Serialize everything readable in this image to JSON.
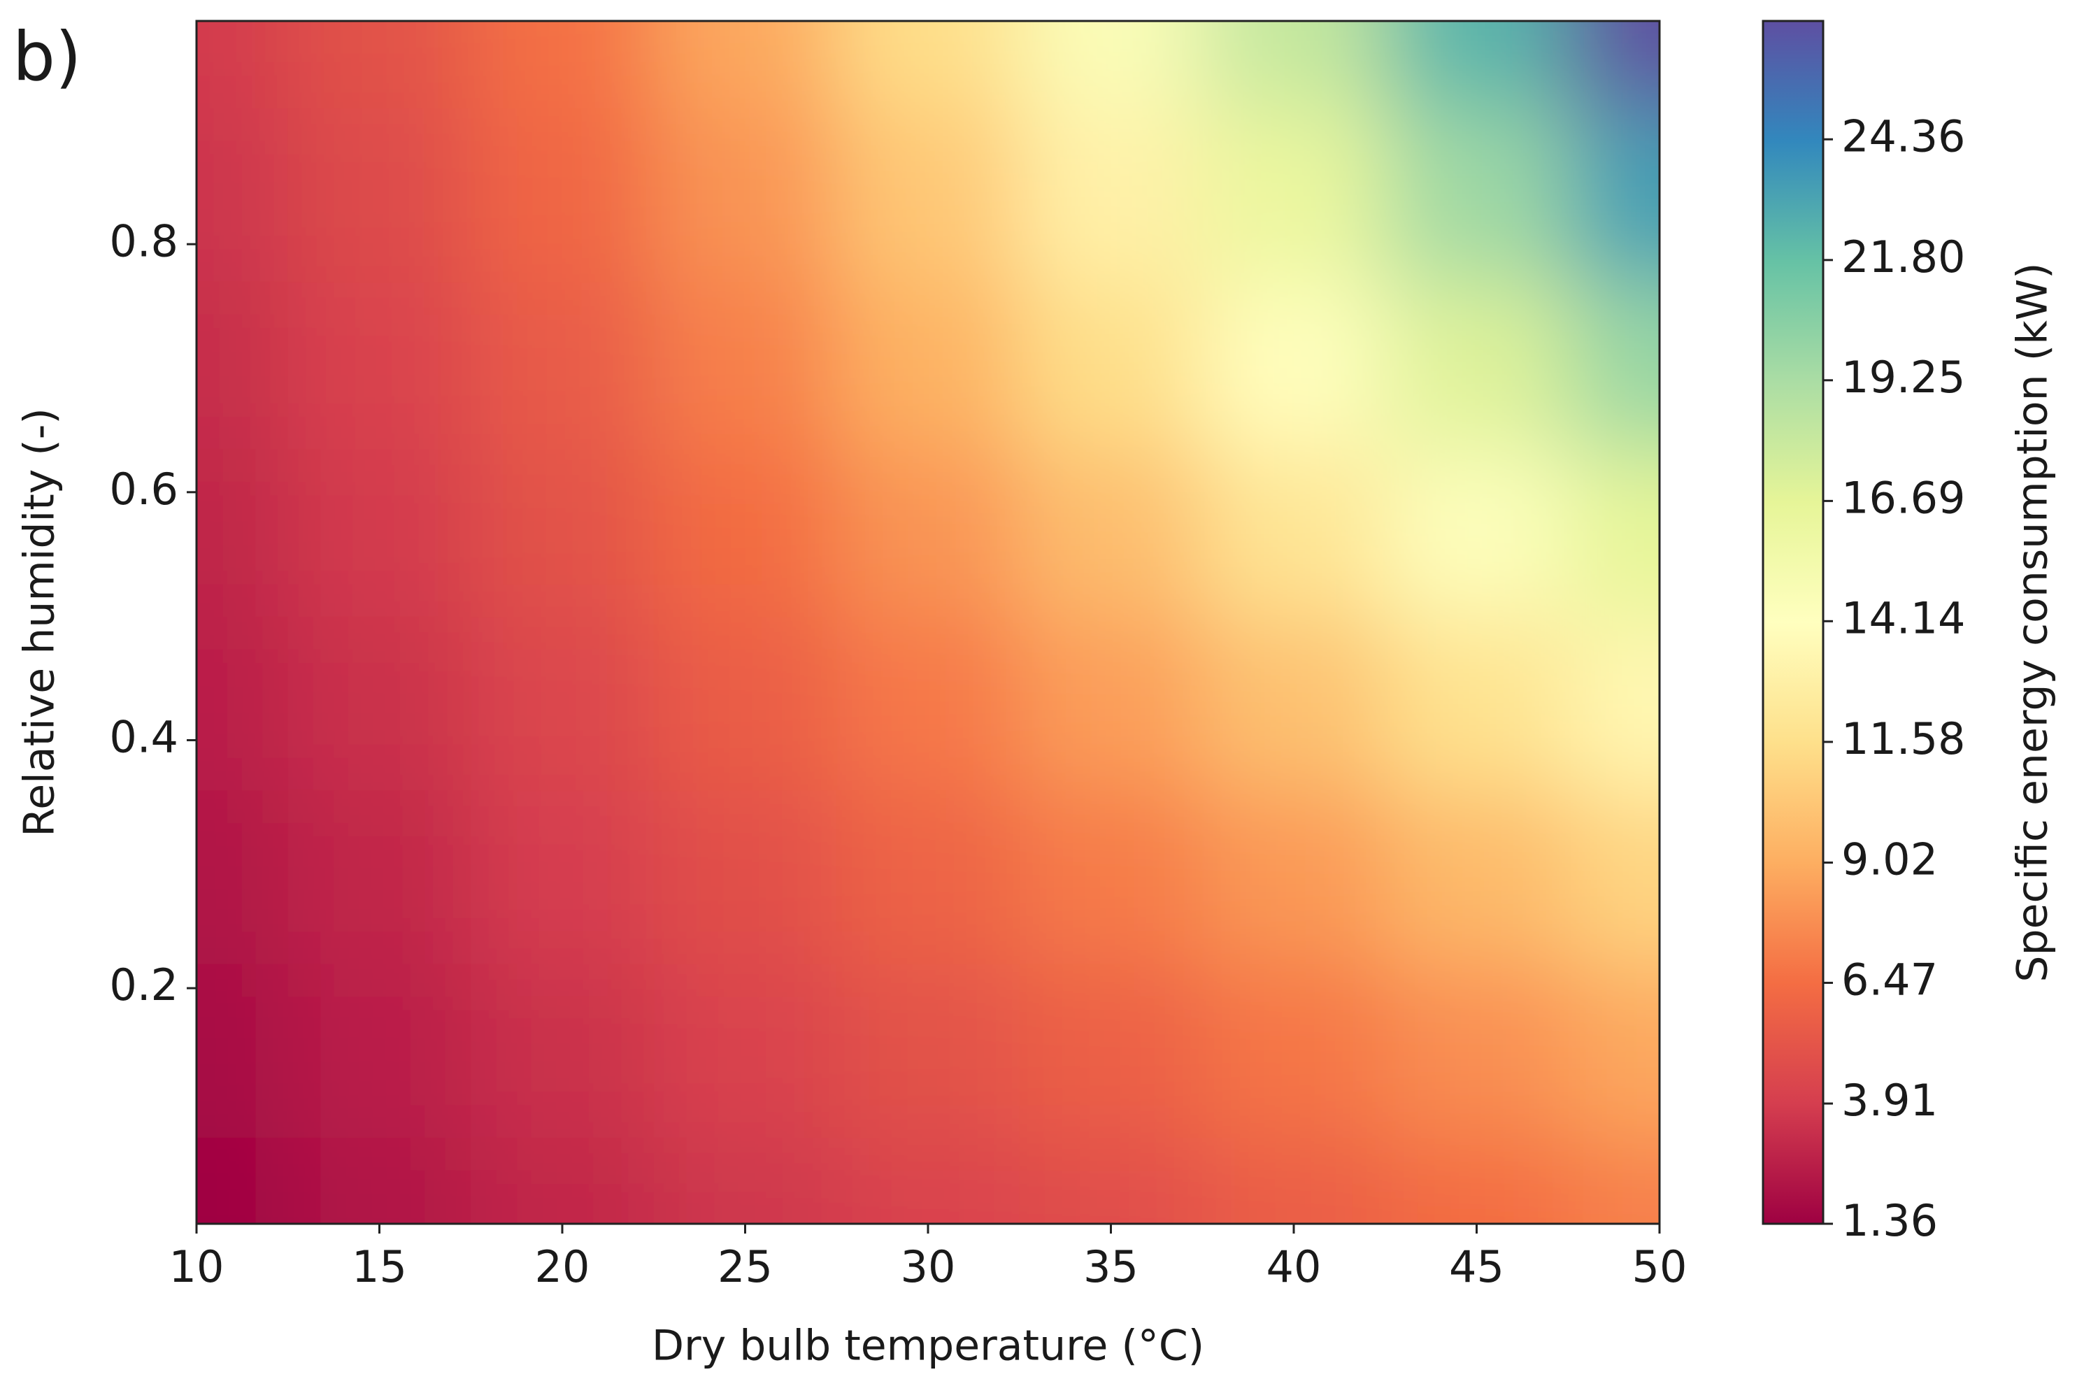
{
  "chart_data": {
    "type": "heatmap",
    "panel_label": "b)",
    "x_label": "Dry bulb temperature (°C)",
    "y_label": "Relative humidity (-)",
    "colorbar_label": "Specific energy consumption (kW)",
    "x": [
      10,
      15,
      20,
      25,
      30,
      35,
      40,
      45,
      50
    ],
    "y": [
      0.01,
      0.15,
      0.29,
      0.43,
      0.57,
      0.7,
      0.84,
      0.98
    ],
    "z": [
      [
        1.4,
        2.2,
        3.0,
        3.6,
        4.2,
        4.8,
        5.6,
        6.4,
        7.2
      ],
      [
        1.8,
        2.6,
        3.4,
        4.2,
        5.0,
        5.8,
        6.8,
        7.8,
        8.8
      ],
      [
        2.2,
        3.0,
        3.9,
        4.9,
        5.9,
        7.0,
        8.2,
        9.6,
        11.0
      ],
      [
        2.6,
        3.4,
        4.4,
        5.6,
        6.9,
        8.4,
        10.0,
        11.8,
        13.5
      ],
      [
        2.9,
        3.8,
        5.0,
        6.4,
        8.0,
        9.8,
        12.0,
        14.3,
        16.7
      ],
      [
        3.2,
        4.2,
        5.5,
        7.2,
        9.2,
        11.5,
        14.0,
        17.0,
        20.0
      ],
      [
        3.5,
        4.6,
        6.1,
        8.0,
        10.3,
        13.0,
        16.2,
        19.7,
        23.4
      ],
      [
        3.8,
        5.0,
        6.6,
        8.8,
        11.5,
        14.6,
        18.2,
        22.4,
        26.9
      ]
    ],
    "xlim": [
      10,
      50
    ],
    "ylim": [
      0.01,
      0.98
    ],
    "xticks": [
      10,
      15,
      20,
      25,
      30,
      35,
      40,
      45,
      50
    ],
    "yticks": [
      0.2,
      0.4,
      0.6,
      0.8
    ],
    "clim": [
      1.36,
      26.87
    ],
    "cticks": [
      1.36,
      3.91,
      6.47,
      9.02,
      11.58,
      14.14,
      16.69,
      19.25,
      {
        "value": 21.8,
        "label": "21.80"
      },
      24.36
    ],
    "colormap": [
      "#9e0142",
      "#d53e4f",
      "#f46d43",
      "#fdae61",
      "#fee08b",
      "#ffffbf",
      "#e6f598",
      "#abdda4",
      "#66c2a5",
      "#3288bd",
      "#5e4fa2"
    ]
  }
}
